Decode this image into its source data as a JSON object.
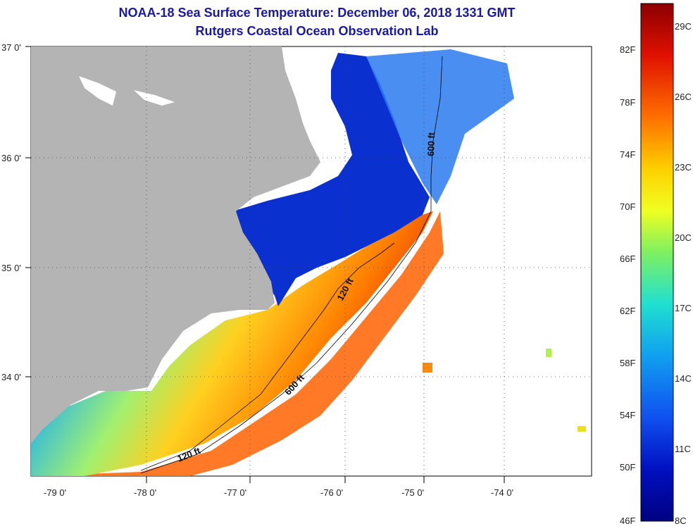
{
  "title": "NOAA-18 Sea Surface Temperature:  December 06, 2018 1331 GMT",
  "subtitle": "Rutgers Coastal Ocean Observation Lab",
  "map": {
    "lat_labels": [
      "37 0'",
      "36 0'",
      "35 0'",
      "34 0'"
    ],
    "lon_labels": [
      "-79 0'",
      "-78 0'",
      "-77 0'",
      "-76 0'",
      "-75 0'",
      "-74 0'"
    ],
    "isobath_labels": [
      "600 ft",
      "120 ft",
      "600 ft",
      "120 ft"
    ]
  },
  "colorbar": {
    "f_labels": [
      "82F",
      "78F",
      "74F",
      "70F",
      "66F",
      "62F",
      "58F",
      "54F",
      "50F",
      "46F"
    ],
    "c_labels": [
      "29C",
      "26C",
      "23C",
      "20C",
      "17C",
      "14C",
      "11C",
      "8C"
    ],
    "colors": [
      "#8b0000",
      "#e01000",
      "#ff7000",
      "#ffd000",
      "#f0ff20",
      "#80f060",
      "#20e0d0",
      "#10a0f0",
      "#1050f0",
      "#0010c0",
      "#000080"
    ]
  }
}
